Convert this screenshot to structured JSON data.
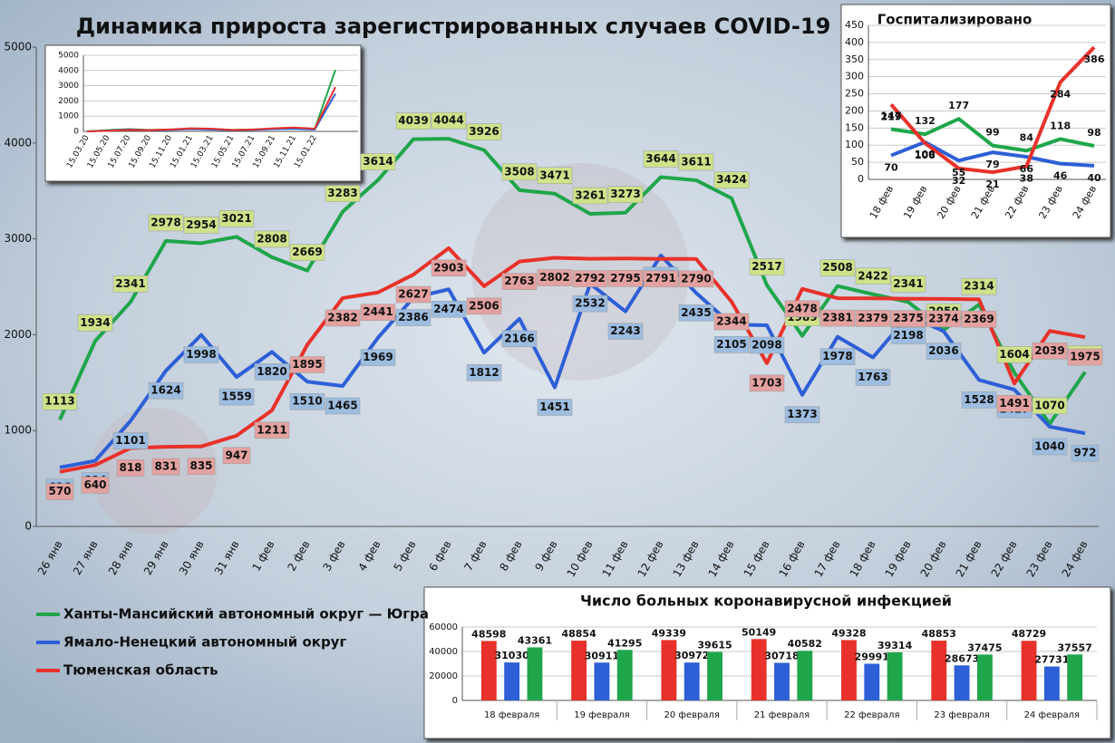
{
  "chart_data": [
    {
      "type": "line",
      "title": "Динамика прироста зарегистрированных случаев COVID-19",
      "categories": [
        "26 янв",
        "27 янв",
        "28 янв",
        "29 янв",
        "30 янв",
        "31 янв",
        "1 фев",
        "2 фев",
        "3 фев",
        "4 фев",
        "5 фев",
        "6 фев",
        "7 фев",
        "8 фев",
        "9 фев",
        "10 фев",
        "11 фев",
        "12 фев",
        "13 фев",
        "14 фев",
        "15 фев",
        "16 фев",
        "17 фев",
        "18 фев",
        "19 фев",
        "20 фев",
        "21 фев",
        "22 фев",
        "23 фев",
        "24 фев"
      ],
      "series": [
        {
          "name": "Ханты-Мансийский автономный округ — Югра",
          "color": "#1fa64a",
          "values": [
            1113,
            1934,
            2341,
            2978,
            2954,
            3021,
            2808,
            2669,
            3283,
            3614,
            4039,
            4044,
            3926,
            3508,
            3471,
            3261,
            3273,
            3644,
            3611,
            3424,
            2517,
            1989,
            2508,
            2422,
            2341,
            2050,
            2314,
            1604,
            1070,
            1611
          ]
        },
        {
          "name": "Ямало-Ненецкий автономный округ",
          "color": "#2d5fd6",
          "values": [
            616,
            684,
            1101,
            1624,
            1998,
            1559,
            1820,
            1510,
            1465,
            1969,
            2386,
            2474,
            1812,
            2166,
            1451,
            2532,
            2243,
            2827,
            2435,
            2105,
            2098,
            1373,
            1978,
            1763,
            2198,
            2036,
            1528,
            1427,
            1040,
            972
          ]
        },
        {
          "name": "Тюменская область",
          "color": "#e8312a",
          "values": [
            570,
            640,
            818,
            831,
            835,
            947,
            1211,
            1895,
            2382,
            2441,
            2627,
            2903,
            2506,
            2763,
            2802,
            2792,
            2795,
            2791,
            2790,
            2344,
            1703,
            2478,
            2381,
            2379,
            2375,
            2374,
            2369,
            1491,
            2039,
            1975
          ]
        }
      ],
      "ylim": [
        0,
        5000
      ],
      "yticks": [
        0,
        1000,
        2000,
        3000,
        4000,
        5000
      ],
      "grid": false,
      "legend": "bottom-left",
      "data_labels": true
    },
    {
      "type": "line",
      "categories": [
        "15.03.20",
        "15.05.20",
        "15.07.20",
        "15.09.20",
        "15.11.20",
        "15.01.21",
        "15.03.21",
        "15.05.21",
        "15.07.21",
        "15.09.21",
        "15.11.21",
        "15.01.22",
        null
      ],
      "series": [
        {
          "color": "#1fa64a",
          "values": [
            0,
            80,
            150,
            100,
            120,
            180,
            150,
            100,
            130,
            180,
            200,
            150,
            4039
          ]
        },
        {
          "color": "#2d5fd6",
          "values": [
            0,
            50,
            120,
            80,
            100,
            150,
            120,
            80,
            100,
            150,
            170,
            120,
            2474
          ]
        },
        {
          "color": "#e8312a",
          "values": [
            0,
            40,
            100,
            80,
            130,
            200,
            180,
            90,
            120,
            200,
            250,
            180,
            2903
          ]
        }
      ],
      "ylim": [
        0,
        5000
      ],
      "yticks": [
        0,
        1000,
        2000,
        3000,
        4000,
        5000
      ],
      "grid": true,
      "data_labels": false
    },
    {
      "type": "line",
      "title": "Госпитализировано",
      "categories": [
        "18 фев",
        "19 фев",
        "20 фев",
        "21 фев",
        "22 фев",
        "23 фев",
        "24 фев"
      ],
      "series": [
        {
          "color": "#1fa64a",
          "values": [
            147,
            132,
            177,
            99,
            84,
            118,
            98
          ]
        },
        {
          "color": "#2d5fd6",
          "values": [
            70,
            109,
            55,
            79,
            66,
            46,
            40
          ]
        },
        {
          "color": "#e8312a",
          "values": [
            219,
            106,
            32,
            21,
            38,
            284,
            386
          ]
        }
      ],
      "ylim": [
        0,
        450
      ],
      "yticks": [
        0,
        50,
        100,
        150,
        200,
        250,
        300,
        350,
        400,
        450
      ],
      "grid": true,
      "data_labels": true
    },
    {
      "type": "bar",
      "title": "Число больных коронавирусной инфекцией",
      "categories": [
        "18 февраля",
        "19 февраля",
        "20 февраля",
        "21 февраля",
        "22 февраля",
        "23 февраля",
        "24 февраля"
      ],
      "series": [
        {
          "color": "#e8312a",
          "values": [
            48598,
            48854,
            49339,
            50149,
            49328,
            48853,
            48729
          ]
        },
        {
          "color": "#2d5fd6",
          "values": [
            31030,
            30911,
            30972,
            30718,
            29991,
            28673,
            27731
          ]
        },
        {
          "color": "#1fa64a",
          "values": [
            43361,
            41295,
            39615,
            40582,
            39314,
            37475,
            37557
          ]
        }
      ],
      "ylim": [
        0,
        60000
      ],
      "yticks": [
        0,
        20000,
        40000,
        60000
      ],
      "grid": true,
      "data_labels": true
    }
  ]
}
